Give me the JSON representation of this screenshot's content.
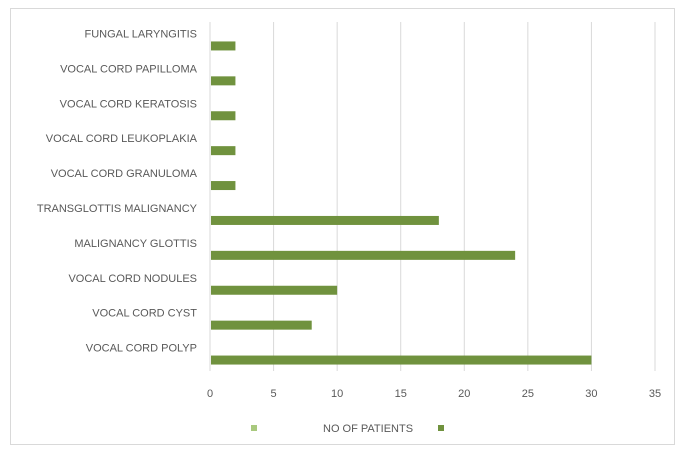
{
  "chart_data": {
    "type": "bar",
    "orientation": "horizontal",
    "categories": [
      "VOCAL CORD POLYP",
      "VOCAL CORD CYST",
      "VOCAL CORD NODULES",
      "MALIGNANCY GLOTTIS",
      "TRANSGLOTTIS MALIGNANCY",
      "VOCAL CORD GRANULOMA",
      "VOCAL CORD LEUKOPLAKIA",
      "VOCAL CORD KERATOSIS",
      "VOCAL CORD PAPILLOMA",
      "FUNGAL LARYNGITIS"
    ],
    "series": [
      {
        "name": "NO OF PATIENTS",
        "values": [
          30,
          8,
          10,
          24,
          18,
          2,
          2,
          2,
          2,
          2
        ],
        "color": "#70923e"
      }
    ],
    "xlim": [
      0,
      35
    ],
    "xticks": [
      "0",
      "5",
      "10",
      "15",
      "20",
      "25",
      "30",
      "35"
    ],
    "grid": "vertical",
    "legend": {
      "position": "bottom",
      "label": "NO OF PATIENTS",
      "marker_colors": [
        "#a9c97e",
        "#70923e"
      ]
    },
    "colors": {
      "gridline": "#d9d9d9",
      "text": "#595959"
    }
  }
}
